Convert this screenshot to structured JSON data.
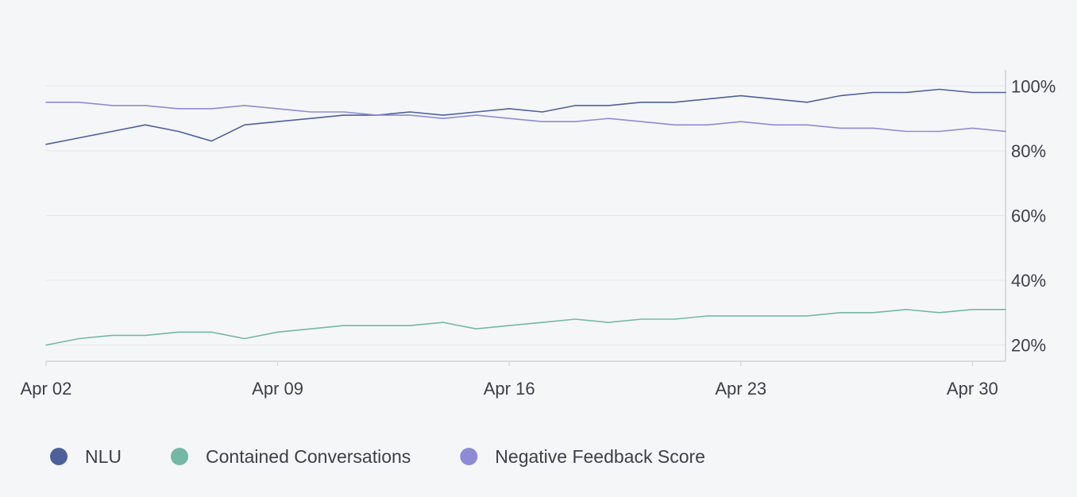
{
  "chart_data": {
    "type": "line",
    "title": "",
    "xlabel": "",
    "ylabel": "",
    "ylim": [
      15,
      105
    ],
    "y_ticks": [
      "20%",
      "40%",
      "60%",
      "80%",
      "100%"
    ],
    "y_tick_values": [
      20,
      40,
      60,
      80,
      100
    ],
    "x_ticks": [
      "Apr 02",
      "Apr 09",
      "Apr 16",
      "Apr 23",
      "Apr 30"
    ],
    "x_tick_days": [
      2,
      9,
      16,
      23,
      30
    ],
    "x_range": [
      2,
      31
    ],
    "grid": true,
    "legend_position": "bottom-left",
    "x": [
      2,
      3,
      4,
      5,
      6,
      7,
      8,
      9,
      10,
      11,
      12,
      13,
      14,
      15,
      16,
      17,
      18,
      19,
      20,
      21,
      22,
      23,
      24,
      25,
      26,
      27,
      28,
      29,
      30,
      31
    ],
    "series": [
      {
        "name": "NLU",
        "color": "#4e609c",
        "values": [
          82,
          84,
          86,
          88,
          86,
          83,
          88,
          89,
          90,
          91,
          91,
          92,
          91,
          92,
          93,
          92,
          94,
          94,
          95,
          95,
          96,
          97,
          96,
          95,
          97,
          98,
          98,
          99,
          98,
          98
        ]
      },
      {
        "name": "Contained Conversations",
        "color": "#74b8a6",
        "values": [
          20,
          22,
          23,
          23,
          24,
          24,
          22,
          24,
          25,
          26,
          26,
          26,
          27,
          25,
          26,
          27,
          28,
          27,
          28,
          28,
          29,
          29,
          29,
          29,
          30,
          30,
          31,
          30,
          31,
          31
        ]
      },
      {
        "name": "Negative Feedback Score",
        "color": "#8e8bd6",
        "values": [
          95,
          95,
          94,
          94,
          93,
          93,
          94,
          93,
          92,
          92,
          91,
          91,
          90,
          91,
          90,
          89,
          89,
          90,
          89,
          88,
          88,
          89,
          88,
          88,
          87,
          87,
          86,
          86,
          87,
          86
        ]
      }
    ]
  }
}
